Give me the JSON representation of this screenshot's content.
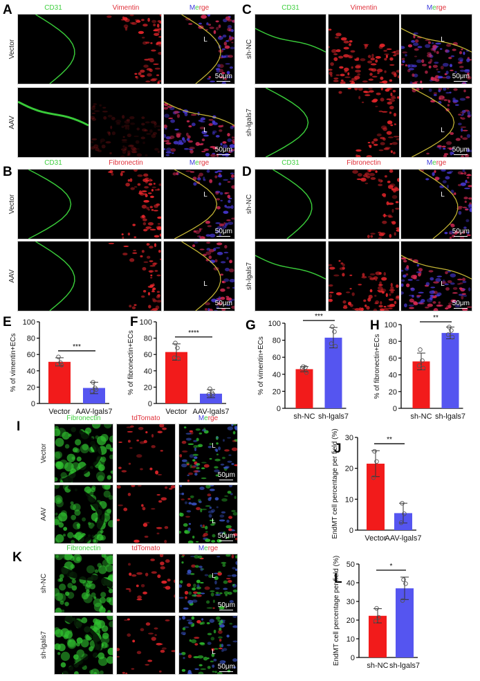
{
  "figure": {
    "panels": {
      "A": {
        "label": "A",
        "columns": [
          {
            "text": "CD31",
            "color": "green"
          },
          {
            "text": "Vimentin",
            "color": "red"
          },
          {
            "merge_parts": [
              "M",
              "e",
              "rge"
            ],
            "text": "Merge"
          }
        ],
        "rows": [
          "Vector",
          "AAV"
        ],
        "scale_bar": "50μm",
        "lumen_mark": "L"
      },
      "B": {
        "label": "B",
        "columns": [
          {
            "text": "CD31",
            "color": "green"
          },
          {
            "text": "Fibronectin",
            "color": "red"
          },
          {
            "merge_parts": [
              "M",
              "e",
              "rge"
            ],
            "text": "Merge"
          }
        ],
        "rows": [
          "Vector",
          "AAV"
        ],
        "scale_bar": "50μm",
        "lumen_mark": "L"
      },
      "C": {
        "label": "C",
        "columns": [
          {
            "text": "CD31",
            "color": "green"
          },
          {
            "text": "Vimentin",
            "color": "red"
          },
          {
            "merge_parts": [
              "M",
              "e",
              "rge"
            ],
            "text": "Merge"
          }
        ],
        "rows": [
          "sh-NC",
          "sh-lgals7"
        ],
        "scale_bar": "50μm",
        "lumen_mark": "L"
      },
      "D": {
        "label": "D",
        "columns": [
          {
            "text": "CD31",
            "color": "green"
          },
          {
            "text": "Fibronectin",
            "color": "red"
          },
          {
            "merge_parts": [
              "M",
              "e",
              "rge"
            ],
            "text": "Merge"
          }
        ],
        "rows": [
          "sh-NC",
          "sh-lgals7"
        ],
        "scale_bar": "50μm",
        "lumen_mark": "L"
      },
      "I": {
        "label": "I",
        "columns": [
          {
            "text": "Fibronectin",
            "color": "green"
          },
          {
            "text": "tdTomato",
            "color": "red"
          },
          {
            "merge_parts": [
              "M",
              "e",
              "rge"
            ],
            "text": "Merge"
          }
        ],
        "rows": [
          "Vector",
          "AAV"
        ],
        "scale_bar": "50μm",
        "lumen_mark": "L"
      },
      "K": {
        "label": "K",
        "columns": [
          {
            "text": "Fibronectin",
            "color": "green"
          },
          {
            "text": "tdTomato",
            "color": "red"
          },
          {
            "merge_parts": [
              "M",
              "e",
              "rge"
            ],
            "text": "Merge"
          }
        ],
        "rows": [
          "sh-NC",
          "sh-lgals7"
        ],
        "scale_bar": "50μm",
        "lumen_mark": "L"
      }
    },
    "colors": {
      "bar_control": "#f21b1b",
      "bar_treatment": "#5555f0",
      "stain_green": "#3fcf3f",
      "stain_red": "#e0303a",
      "stain_blue": "#3c3cdc"
    }
  },
  "chart_data": [
    {
      "panel": "E",
      "type": "bar",
      "title": "",
      "xlabel": "",
      "ylabel": "% of vimentin+ECs",
      "categories": [
        "Vector",
        "AAV-lgals7"
      ],
      "values": [
        51,
        19
      ],
      "error_sd": [
        5,
        7
      ],
      "points": [
        [
          57,
          50,
          48,
          47
        ],
        [
          26,
          19,
          15,
          17
        ]
      ],
      "ylim": [
        0,
        100
      ],
      "yticks": [
        0,
        20,
        40,
        60,
        80,
        100
      ],
      "significance": "***",
      "bar_colors": [
        "#f21b1b",
        "#5555f0"
      ]
    },
    {
      "panel": "F",
      "type": "bar",
      "title": "",
      "xlabel": "",
      "ylabel": "% of fibronectin+ECs",
      "categories": [
        "Vector",
        "AAV-lgals7"
      ],
      "values": [
        63,
        12
      ],
      "error_sd": [
        10,
        5
      ],
      "points": [
        [
          74,
          68,
          56,
          55
        ],
        [
          18,
          13,
          11,
          11
        ]
      ],
      "ylim": [
        0,
        100
      ],
      "yticks": [
        0,
        20,
        40,
        60,
        80,
        100
      ],
      "significance": "****",
      "bar_colors": [
        "#f21b1b",
        "#5555f0"
      ]
    },
    {
      "panel": "G",
      "type": "bar",
      "title": "",
      "xlabel": "",
      "ylabel": "% of vimentin+ECs",
      "categories": [
        "sh-NC",
        "sh-lgals7"
      ],
      "values": [
        46,
        83
      ],
      "error_sd": [
        3,
        12
      ],
      "points": [
        [
          49,
          48,
          47,
          42
        ],
        [
          96,
          90,
          76,
          73
        ]
      ],
      "ylim": [
        0,
        100
      ],
      "yticks": [
        0,
        20,
        40,
        60,
        80,
        100
      ],
      "significance": "***",
      "bar_colors": [
        "#f21b1b",
        "#5555f0"
      ]
    },
    {
      "panel": "H",
      "type": "bar",
      "title": "",
      "xlabel": "",
      "ylabel": "% of fibronectin+ECs",
      "categories": [
        "sh-NC",
        "sh-lgals7"
      ],
      "values": [
        56,
        90
      ],
      "error_sd": [
        10,
        7
      ],
      "points": [
        [
          70,
          57,
          51,
          48
        ],
        [
          97,
          93,
          88,
          85
        ]
      ],
      "ylim": [
        0,
        100
      ],
      "yticks": [
        0,
        20,
        40,
        60,
        80,
        100
      ],
      "significance": "**",
      "bar_colors": [
        "#f21b1b",
        "#5555f0"
      ]
    },
    {
      "panel": "J",
      "type": "bar",
      "title": "",
      "xlabel": "",
      "ylabel": "EndMT cell percentage per field (%)",
      "categories": [
        "Vector",
        "AAV-lgals7"
      ],
      "values": [
        21.5,
        5.5
      ],
      "error_sd": [
        4.2,
        3.2
      ],
      "points": [
        [
          25.5,
          22.2,
          17
        ],
        [
          8.7,
          5.3,
          2.4
        ]
      ],
      "ylim": [
        0,
        30
      ],
      "yticks": [
        0,
        10,
        20,
        30
      ],
      "significance": "**",
      "bar_colors": [
        "#f21b1b",
        "#5555f0"
      ]
    },
    {
      "panel": "L",
      "type": "bar",
      "title": "",
      "xlabel": "",
      "ylabel": "EndMT cell percentage per field (%)",
      "categories": [
        "sh-NC",
        "sh-lgals7"
      ],
      "values": [
        22.3,
        37
      ],
      "error_sd": [
        3.8,
        6
      ],
      "points": [
        [
          26.3,
          21.5,
          19.5
        ],
        [
          41.6,
          39.5,
          30.5
        ]
      ],
      "ylim": [
        0,
        50
      ],
      "yticks": [
        0,
        10,
        20,
        30,
        40,
        50
      ],
      "significance": "*",
      "bar_colors": [
        "#f21b1b",
        "#5555f0"
      ]
    }
  ]
}
